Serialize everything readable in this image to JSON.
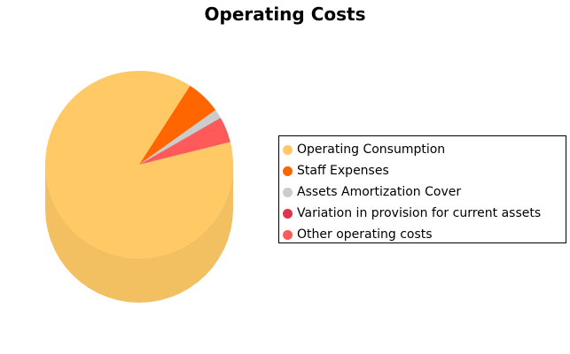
{
  "chart_data": {
    "type": "pie",
    "title": "Operating Costs",
    "style": "3d",
    "legend_position": "right",
    "slices": [
      {
        "name": "Operating Consumption",
        "value": 88.0,
        "color": "#FFC966"
      },
      {
        "name": "Staff Expenses",
        "value": 6.0,
        "color": "#FF6600"
      },
      {
        "name": "Assets Amortization Cover",
        "value": 1.6,
        "color": "#CCCCCC"
      },
      {
        "name": "Variation in provision for current assets",
        "value": 0.1,
        "color": "#E0344A"
      },
      {
        "name": "Other operating costs",
        "value": 4.3,
        "color": "#FF5A5A"
      }
    ]
  }
}
